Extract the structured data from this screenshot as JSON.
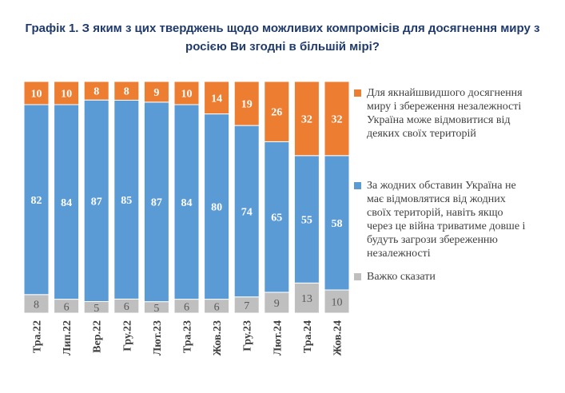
{
  "chart_data": {
    "type": "bar",
    "stacked": true,
    "percent": true,
    "title": "Графік 1. З яким з цих тверджень щодо можливих компромісів для досягнення миру з\nросією Ви згодні в більшій мірі?",
    "categories": [
      "Тра.22",
      "Лип.22",
      "Вер.22",
      "Гру.22",
      "Лют.23",
      "Тра.23",
      "Жов.23",
      "Гру.23",
      "Лют.24",
      "Тра.24",
      "Жов.24"
    ],
    "series": [
      {
        "name": "Важко сказати",
        "color": "#bfbfbf",
        "label_color": "#595959",
        "values": [
          8,
          6,
          5,
          6,
          5,
          6,
          6,
          7,
          9,
          13,
          10
        ]
      },
      {
        "name": "За жодних обставин Україна не має відмовлятися від жодних своїх територій, навіть якщо через це війна триватиме довше і будуть загрози збереженню незалежності",
        "legend_text": "За жодних обставин Україна не\nмає відмовлятися від жодних\nсвоїх територій, навіть якщо\nчерез це війна триватиме довше і\nбудуть загрози збереженню\nнезалежності",
        "color": "#5b9bd5",
        "label_color": "#ffffff",
        "values": [
          82,
          84,
          87,
          85,
          87,
          84,
          80,
          74,
          65,
          55,
          58
        ]
      },
      {
        "name": "Для якнайшвидшого досягнення миру і збереження незалежності Україна може відмовитися від деяких своїх територій",
        "legend_text": "Для якнайшвидшого досягнення\nмиру і збереження незалежності\nУкраїна може відмовитися від\nдеяких своїх територій",
        "color": "#ed7d31",
        "label_color": "#ffffff",
        "values": [
          10,
          10,
          8,
          8,
          9,
          10,
          14,
          19,
          26,
          32,
          32
        ]
      }
    ],
    "xlabel": "",
    "ylabel": "",
    "ylim": [
      0,
      100
    ],
    "grid": false,
    "legend_position": "right"
  }
}
